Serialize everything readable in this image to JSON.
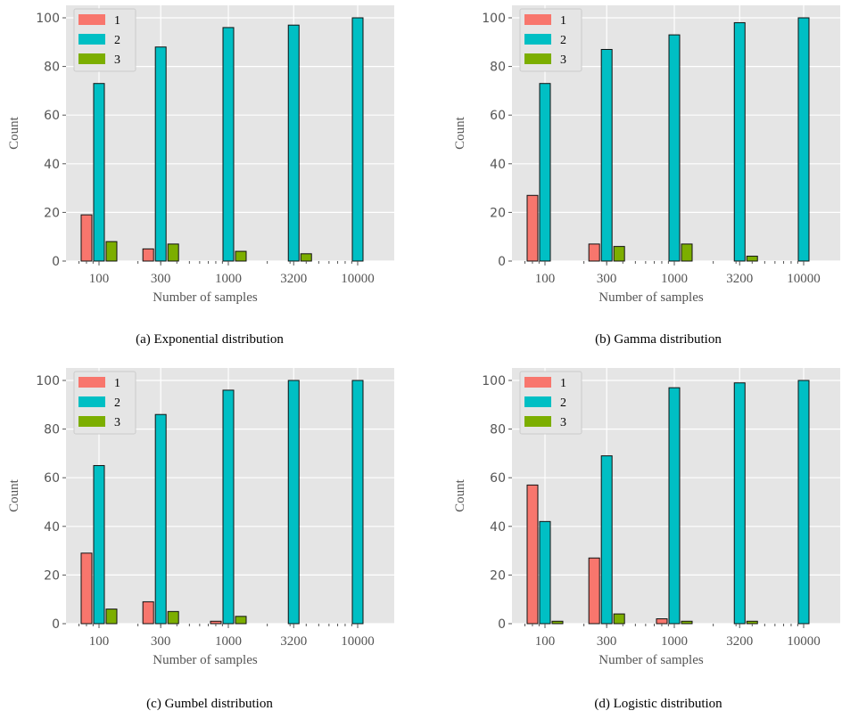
{
  "colors": {
    "s1": "#f8766d",
    "s2": "#00bfc4",
    "s3": "#7cae00",
    "panel_bg": "#e5e5e5",
    "grid": "#ffffff"
  },
  "chart_data": [
    {
      "type": "bar",
      "caption": "(a) Exponential distribution",
      "xlabel": "Number of samples",
      "ylabel": "Count",
      "x_scale": "log",
      "categories": [
        "100",
        "300",
        "1000",
        "3200",
        "10000"
      ],
      "ylim": [
        0,
        100
      ],
      "yticks": [
        "0",
        "20",
        "40",
        "60",
        "80",
        "100"
      ],
      "legend_position": "top-left",
      "series": [
        {
          "name": "1",
          "values": [
            19,
            5,
            0,
            0,
            0
          ]
        },
        {
          "name": "2",
          "values": [
            73,
            88,
            96,
            97,
            100
          ]
        },
        {
          "name": "3",
          "values": [
            8,
            7,
            4,
            3,
            0
          ]
        }
      ]
    },
    {
      "type": "bar",
      "caption": "(b) Gamma distribution",
      "xlabel": "Number of samples",
      "ylabel": "Count",
      "x_scale": "log",
      "categories": [
        "100",
        "300",
        "1000",
        "3200",
        "10000"
      ],
      "ylim": [
        0,
        100
      ],
      "yticks": [
        "0",
        "20",
        "40",
        "60",
        "80",
        "100"
      ],
      "legend_position": "top-left",
      "series": [
        {
          "name": "1",
          "values": [
            27,
            7,
            0,
            0,
            0
          ]
        },
        {
          "name": "2",
          "values": [
            73,
            87,
            93,
            98,
            100
          ]
        },
        {
          "name": "3",
          "values": [
            0,
            6,
            7,
            2,
            0
          ]
        }
      ]
    },
    {
      "type": "bar",
      "caption": "(c) Gumbel distribution",
      "xlabel": "Number of samples",
      "ylabel": "Count",
      "x_scale": "log",
      "categories": [
        "100",
        "300",
        "1000",
        "3200",
        "10000"
      ],
      "ylim": [
        0,
        100
      ],
      "yticks": [
        "0",
        "20",
        "40",
        "60",
        "80",
        "100"
      ],
      "legend_position": "top-left",
      "series": [
        {
          "name": "1",
          "values": [
            29,
            9,
            1,
            0,
            0
          ]
        },
        {
          "name": "2",
          "values": [
            65,
            86,
            96,
            100,
            100
          ]
        },
        {
          "name": "3",
          "values": [
            6,
            5,
            3,
            0,
            0
          ]
        }
      ]
    },
    {
      "type": "bar",
      "caption": "(d) Logistic distribution",
      "xlabel": "Number of samples",
      "ylabel": "Count",
      "x_scale": "log",
      "categories": [
        "100",
        "300",
        "1000",
        "3200",
        "10000"
      ],
      "ylim": [
        0,
        100
      ],
      "yticks": [
        "0",
        "20",
        "40",
        "60",
        "80",
        "100"
      ],
      "legend_position": "top-left",
      "series": [
        {
          "name": "1",
          "values": [
            57,
            27,
            2,
            0,
            0
          ]
        },
        {
          "name": "2",
          "values": [
            42,
            69,
            97,
            99,
            100
          ]
        },
        {
          "name": "3",
          "values": [
            1,
            4,
            1,
            1,
            0
          ]
        }
      ]
    }
  ]
}
